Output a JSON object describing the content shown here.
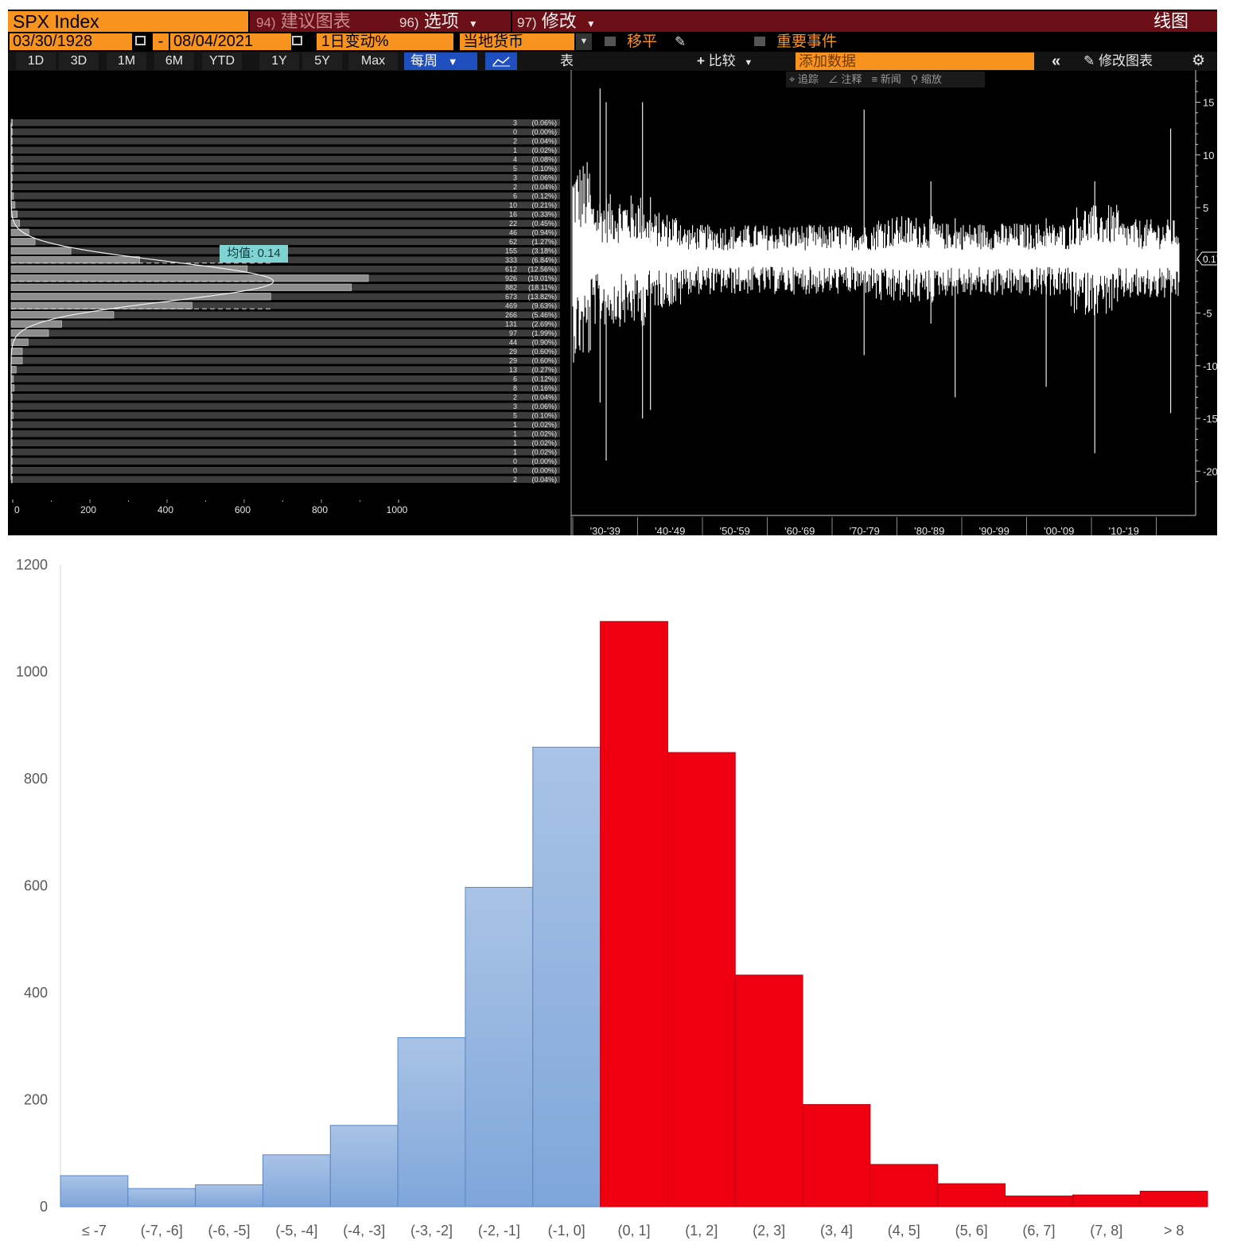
{
  "terminal": {
    "security": "SPX Index",
    "menu": [
      {
        "num": "94)",
        "label": "建议图表"
      },
      {
        "num": "96)",
        "label": "选项"
      },
      {
        "num": "97)",
        "label": "修改"
      }
    ],
    "chart_type": "线图",
    "start_date": "03/30/1928",
    "end_date": "08/04/2021",
    "date_sep": "-",
    "field": "1日变动%",
    "currency": "当地货币",
    "option_shift": "移平",
    "option_events": "重要事件",
    "periods": [
      "1D",
      "3D",
      "1M",
      "6M",
      "YTD",
      "1Y",
      "5Y",
      "Max"
    ],
    "frequency": "每周",
    "table_label": "表",
    "compare_label": "比较",
    "add_data_label": "添加数据",
    "edit_chart_label": "修改图表",
    "tools": [
      "追踪",
      "注释",
      "新闻",
      "缩放"
    ],
    "mean_label": "均值:",
    "mean_value": "0.14",
    "last_value": "0.17",
    "colors": {
      "orange": "#f7931e",
      "maroon": "#6d0f17",
      "blue_btn": "#1f4fbf"
    }
  },
  "chart_data": [
    {
      "type": "bar",
      "orientation": "horizontal",
      "title": "SPX 1-day % change distribution",
      "counts": [
        3,
        0,
        2,
        1,
        4,
        5,
        3,
        2,
        6,
        10,
        16,
        22,
        46,
        62,
        155,
        333,
        612,
        926,
        882,
        673,
        469,
        266,
        131,
        97,
        44,
        29,
        29,
        13,
        6,
        8,
        2,
        3,
        5,
        1,
        1,
        1,
        1,
        0,
        0,
        2
      ],
      "percents": [
        "(0.06%)",
        "(0.00%)",
        "(0.04%)",
        "(0.02%)",
        "(0.08%)",
        "(0.10%)",
        "(0.06%)",
        "(0.04%)",
        "(0.12%)",
        "(0.21%)",
        "(0.33%)",
        "(0.45%)",
        "(0.94%)",
        "(1.27%)",
        "(3.18%)",
        "(6.84%)",
        "(12.56%)",
        "(19.01%)",
        "(18.11%)",
        "(13.82%)",
        "(9.63%)",
        "(5.46%)",
        "(2.69%)",
        "(1.99%)",
        "(0.90%)",
        "(0.60%)",
        "(0.60%)",
        "(0.27%)",
        "(0.12%)",
        "(0.16%)",
        "(0.04%)",
        "(0.06%)",
        "(0.10%)",
        "(0.02%)",
        "(0.02%)",
        "(0.02%)",
        "(0.02%)",
        "(0.00%)",
        "(0.00%)",
        "(0.04%)"
      ],
      "x_ticks": [
        "0",
        "200",
        "400",
        "600",
        "800",
        "1000"
      ],
      "xlim": [
        0,
        1000
      ]
    },
    {
      "type": "line",
      "title": "SPX 1-day % change time series",
      "x_ticks": [
        "'30-'39",
        "'40-'49",
        "'50-'59",
        "'60-'69",
        "'70-'79",
        "'80-'89",
        "'90-'99",
        "'00-'09",
        "'10-'19"
      ],
      "y_ticks": [
        15,
        10,
        5,
        -5,
        -10,
        -15,
        -20
      ],
      "ylim": [
        -20,
        17
      ]
    },
    {
      "type": "bar",
      "title": "",
      "categories": [
        "≤ -7",
        "(-7, -6]",
        "(-6, -5]",
        "(-5, -4]",
        "(-4, -3]",
        "(-3, -2]",
        "(-2, -1]",
        "(-1, 0]",
        "(0, 1]",
        "(1, 2]",
        "(2, 3]",
        "(3, 4]",
        "(4, 5]",
        "(5, 6]",
        "(6, 7]",
        "(7, 8]",
        "> 8"
      ],
      "values": [
        58,
        34,
        41,
        97,
        152,
        316,
        597,
        859,
        1094,
        849,
        433,
        191,
        79,
        43,
        20,
        22,
        29
      ],
      "ylim": [
        0,
        1200
      ],
      "y_ticks": [
        "0",
        "200",
        "400",
        "600",
        "800",
        "1000",
        "1200"
      ],
      "colors": {
        "negative": "#7fa6da",
        "positive": "#ee0011"
      }
    }
  ]
}
